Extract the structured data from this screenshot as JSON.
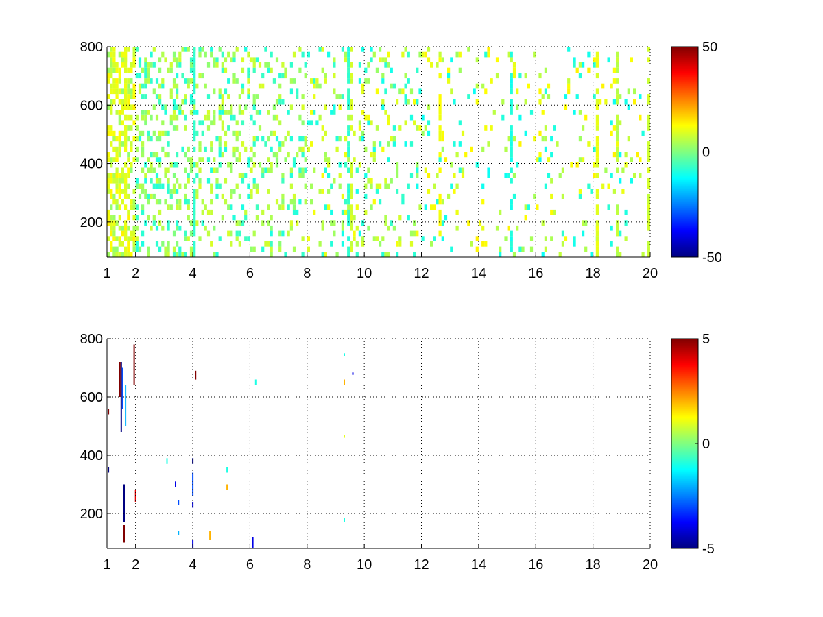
{
  "chart_data": [
    {
      "type": "heatmap",
      "title": "",
      "xlabel": "",
      "ylabel": "",
      "xlim": [
        1,
        20
      ],
      "ylim": [
        80,
        800
      ],
      "x_ticks": [
        1,
        2,
        4,
        6,
        8,
        10,
        12,
        14,
        16,
        18,
        20
      ],
      "x_tick_labels": [
        "1",
        "2",
        "4",
        "6",
        "8",
        "10",
        "12",
        "14",
        "16",
        "18",
        "20"
      ],
      "y_ticks": [
        200,
        400,
        600,
        800
      ],
      "y_tick_labels": [
        "200",
        "400",
        "600",
        "800"
      ],
      "grid": true,
      "colormap": "jet",
      "clim": [
        -50,
        50
      ],
      "colorbar_ticks": [
        50,
        0,
        -50
      ],
      "colorbar_tick_labels": [
        "50",
        "0",
        "-50"
      ],
      "background_color": "#ffffff",
      "density_profile": [
        {
          "x_range": [
            1,
            2
          ],
          "fill_fraction": 0.55,
          "dominant_values": [
            3,
            8,
            12
          ]
        },
        {
          "x_range": [
            2,
            4
          ],
          "fill_fraction": 0.3,
          "dominant_values": [
            -8,
            2,
            6
          ]
        },
        {
          "x_range": [
            4,
            8
          ],
          "fill_fraction": 0.22,
          "dominant_values": [
            -8,
            3,
            7
          ]
        },
        {
          "x_range": [
            8,
            12
          ],
          "fill_fraction": 0.16,
          "dominant_values": [
            -9,
            4,
            10
          ]
        },
        {
          "x_range": [
            12,
            20
          ],
          "fill_fraction": 0.09,
          "dominant_values": [
            -10,
            5,
            12
          ]
        }
      ],
      "strong_columns": [
        {
          "x": 1.6,
          "value": 10
        },
        {
          "x": 4.0,
          "value": -8
        },
        {
          "x": 9.4,
          "value": -8
        },
        {
          "x": 9.5,
          "value": 8
        },
        {
          "x": 12.6,
          "value": 12
        },
        {
          "x": 15.1,
          "value": -10
        },
        {
          "x": 18.1,
          "value": 10
        },
        {
          "x": 18.8,
          "value": 6
        },
        {
          "x": 19.9,
          "value": 8
        }
      ]
    },
    {
      "type": "heatmap",
      "title": "",
      "xlabel": "",
      "ylabel": "",
      "xlim": [
        1,
        20
      ],
      "ylim": [
        80,
        800
      ],
      "x_ticks": [
        1,
        2,
        4,
        6,
        8,
        10,
        12,
        14,
        16,
        18,
        20
      ],
      "x_tick_labels": [
        "1",
        "2",
        "4",
        "6",
        "8",
        "10",
        "12",
        "14",
        "16",
        "18",
        "20"
      ],
      "y_ticks": [
        200,
        400,
        600,
        800
      ],
      "y_tick_labels": [
        "200",
        "400",
        "600",
        "800"
      ],
      "grid": true,
      "colormap": "jet",
      "clim": [
        -5,
        5
      ],
      "colorbar_ticks": [
        5,
        0,
        -5
      ],
      "colorbar_tick_labels": [
        "5",
        "0",
        "-5"
      ],
      "background_color": "#ffffff",
      "cells": [
        {
          "x": 1.45,
          "y_range": [
            600,
            720
          ],
          "value": 5
        },
        {
          "x": 1.5,
          "y_range": [
            480,
            720
          ],
          "value": -5
        },
        {
          "x": 1.55,
          "y_range": [
            560,
            700
          ],
          "value": -3
        },
        {
          "x": 1.6,
          "y_range": [
            100,
            160
          ],
          "value": 5
        },
        {
          "x": 1.6,
          "y_range": [
            170,
            300
          ],
          "value": -5
        },
        {
          "x": 1.65,
          "y_range": [
            500,
            640
          ],
          "value": -2
        },
        {
          "x": 1.05,
          "y_range": [
            340,
            360
          ],
          "value": -5
        },
        {
          "x": 1.05,
          "y_range": [
            540,
            560
          ],
          "value": 5
        },
        {
          "x": 1.95,
          "y_range": [
            640,
            780
          ],
          "value": 5
        },
        {
          "x": 2.0,
          "y_range": [
            240,
            280
          ],
          "value": 4
        },
        {
          "x": 3.1,
          "y_range": [
            370,
            390
          ],
          "value": -1
        },
        {
          "x": 3.4,
          "y_range": [
            290,
            310
          ],
          "value": -4
        },
        {
          "x": 3.5,
          "y_range": [
            230,
            245
          ],
          "value": -3
        },
        {
          "x": 3.5,
          "y_range": [
            125,
            140
          ],
          "value": -2
        },
        {
          "x": 4.0,
          "y_range": [
            370,
            390
          ],
          "value": -5
        },
        {
          "x": 4.0,
          "y_range": [
            220,
            240
          ],
          "value": -4
        },
        {
          "x": 4.0,
          "y_range": [
            260,
            340
          ],
          "value": -3
        },
        {
          "x": 4.0,
          "y_range": [
            80,
            110
          ],
          "value": -4
        },
        {
          "x": 4.1,
          "y_range": [
            660,
            690
          ],
          "value": 5
        },
        {
          "x": 4.6,
          "y_range": [
            110,
            140
          ],
          "value": 2
        },
        {
          "x": 5.2,
          "y_range": [
            340,
            360
          ],
          "value": -1
        },
        {
          "x": 5.2,
          "y_range": [
            280,
            300
          ],
          "value": 2
        },
        {
          "x": 6.1,
          "y_range": [
            80,
            120
          ],
          "value": -4
        },
        {
          "x": 6.2,
          "y_range": [
            640,
            660
          ],
          "value": -1
        },
        {
          "x": 9.3,
          "y_range": [
            740,
            750
          ],
          "value": -1
        },
        {
          "x": 9.3,
          "y_range": [
            640,
            660
          ],
          "value": 2
        },
        {
          "x": 9.3,
          "y_range": [
            460,
            470
          ],
          "value": 1
        },
        {
          "x": 9.3,
          "y_range": [
            170,
            185
          ],
          "value": -1
        },
        {
          "x": 9.6,
          "y_range": [
            676,
            684
          ],
          "value": -4
        }
      ]
    }
  ]
}
